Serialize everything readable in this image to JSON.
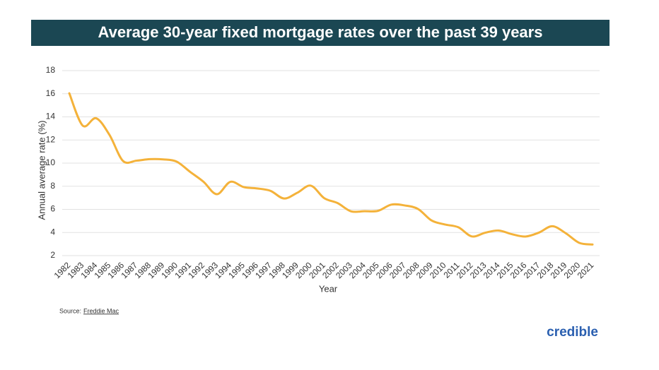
{
  "chart_data": {
    "type": "line",
    "title": "Average 30-year fixed mortgage rates over the past 39 years",
    "y_label": "Annual average rate (%)",
    "x_label": "Year",
    "categories": [
      "1982",
      "1983",
      "1984",
      "1985",
      "1986",
      "1987",
      "1988",
      "1989",
      "1990",
      "1991",
      "1992",
      "1993",
      "1994",
      "1995",
      "1996",
      "1997",
      "1998",
      "1999",
      "2000",
      "2001",
      "2002",
      "2003",
      "2004",
      "2005",
      "2006",
      "2007",
      "2008",
      "2009",
      "2010",
      "2011",
      "2012",
      "2013",
      "2014",
      "2015",
      "2016",
      "2017",
      "2018",
      "2019",
      "2020",
      "2021"
    ],
    "values": [
      16.04,
      13.24,
      13.88,
      12.43,
      10.19,
      10.21,
      10.34,
      10.32,
      10.13,
      9.25,
      8.39,
      7.31,
      8.38,
      7.93,
      7.81,
      7.6,
      6.94,
      7.44,
      8.05,
      6.97,
      6.54,
      5.83,
      5.84,
      5.87,
      6.41,
      6.34,
      6.03,
      5.04,
      4.69,
      4.45,
      3.66,
      3.98,
      4.17,
      3.85,
      3.65,
      3.99,
      4.54,
      3.94,
      3.11,
      2.96
    ],
    "color": "#f4b23a",
    "ylim": [
      2,
      18
    ],
    "yticks": [
      2,
      4,
      6,
      8,
      10,
      12,
      14,
      16,
      18
    ],
    "grid": true
  },
  "footer": {
    "source_label": "Source:",
    "source_name": "Freddie Mac",
    "logo": "credible"
  }
}
